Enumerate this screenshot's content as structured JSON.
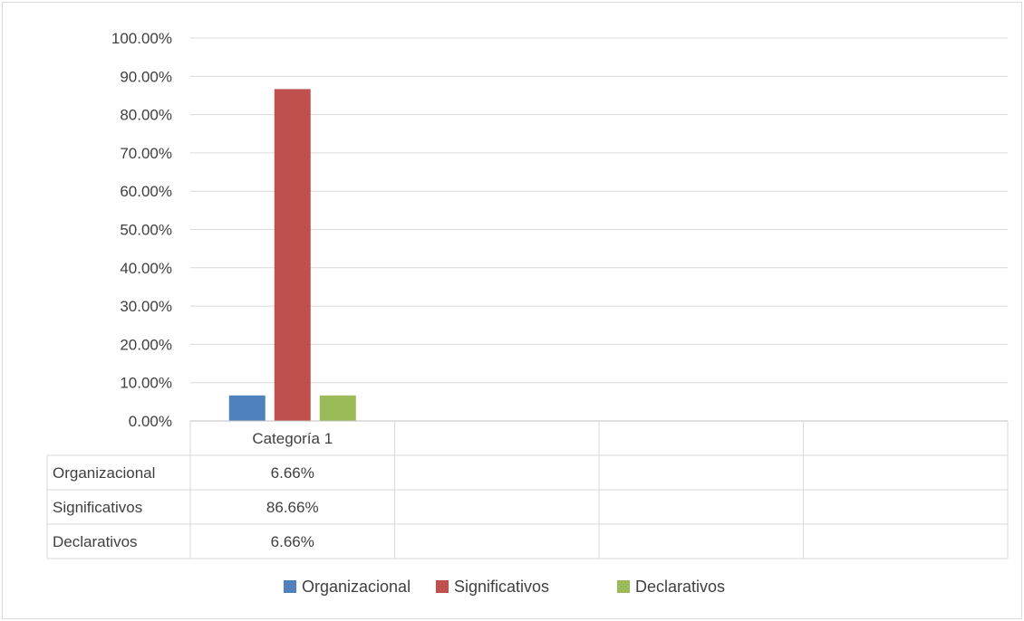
{
  "chart_data": {
    "type": "bar",
    "categories": [
      "Categoría 1"
    ],
    "series": [
      {
        "name": "Organizacional",
        "values": [
          6.66
        ],
        "color": "#4f81bd",
        "label": "6.66%"
      },
      {
        "name": "Significativos",
        "values": [
          86.66
        ],
        "color": "#c0504d",
        "label": "86.66%"
      },
      {
        "name": "Declarativos",
        "values": [
          6.66
        ],
        "color": "#9bbb59",
        "label": "6.66%"
      }
    ],
    "ylim": [
      0,
      100
    ],
    "yticks": [
      "0.00%",
      "10.00%",
      "20.00%",
      "30.00%",
      "40.00%",
      "50.00%",
      "60.00%",
      "70.00%",
      "80.00%",
      "90.00%",
      "100.00%"
    ],
    "grid": true,
    "data_table": true,
    "empty_category_columns": 3,
    "legend_position": "bottom"
  }
}
